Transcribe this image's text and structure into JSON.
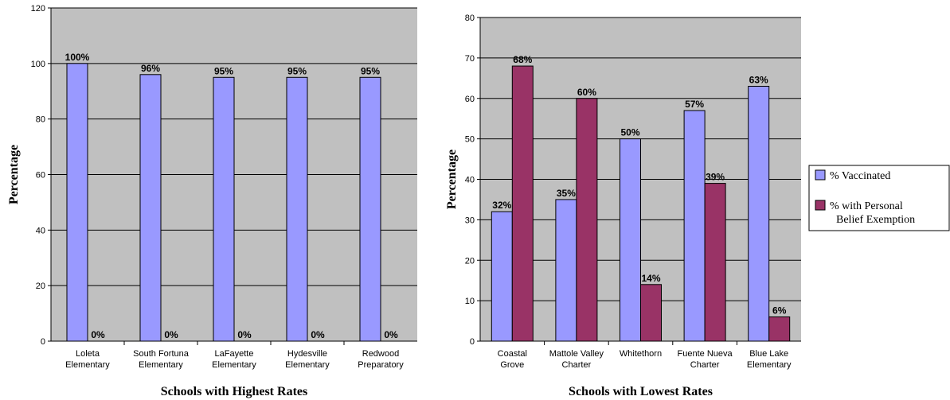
{
  "colors": {
    "plot_bg": "#c0c0c0",
    "vaccinated": "#9999ff",
    "pbe": "#993366",
    "gridline": "#000000"
  },
  "legend": {
    "vaccinated": "% Vaccinated",
    "pbe_line1": "% with Personal",
    "pbe_line2": "Belief Exemption",
    "placement": "right"
  },
  "chart_data": [
    {
      "type": "bar",
      "title": "",
      "xlabel": "Schools with Highest Rates",
      "ylabel": "Percentage",
      "ylim": [
        0,
        120
      ],
      "yticks": [
        0,
        20,
        40,
        60,
        80,
        100,
        120
      ],
      "grid": true,
      "categories": [
        [
          "Loleta",
          "Elementary"
        ],
        [
          "South Fortuna",
          "Elementary"
        ],
        [
          "LaFayette",
          "Elementary"
        ],
        [
          "Hydesville",
          "Elementary"
        ],
        [
          "Redwood",
          "Preparatory"
        ]
      ],
      "series": [
        {
          "name": "% Vaccinated",
          "color": "#9999ff",
          "values": [
            100,
            96,
            95,
            95,
            95
          ],
          "labels": [
            "100%",
            "96%",
            "95%",
            "95%",
            "95%"
          ]
        },
        {
          "name": "% with Personal Belief Exemption",
          "color": "#993366",
          "values": [
            0,
            0,
            0,
            0,
            0
          ],
          "labels": [
            "0%",
            "0%",
            "0%",
            "0%",
            "0%"
          ]
        }
      ]
    },
    {
      "type": "bar",
      "title": "",
      "xlabel": "Schools with Lowest Rates",
      "ylabel": "Percentage",
      "ylim": [
        0,
        80
      ],
      "yticks": [
        0,
        10,
        20,
        30,
        40,
        50,
        60,
        70,
        80
      ],
      "grid": true,
      "categories": [
        [
          "Coastal",
          "Grove"
        ],
        [
          "Mattole Valley",
          "Charter"
        ],
        [
          "Whitethorn"
        ],
        [
          "Fuente Nueva",
          "Charter"
        ],
        [
          "Blue Lake",
          "Elementary"
        ]
      ],
      "series": [
        {
          "name": "% Vaccinated",
          "color": "#9999ff",
          "values": [
            32,
            35,
            50,
            57,
            63
          ],
          "labels": [
            "32%",
            "35%",
            "50%",
            "57%",
            "63%"
          ]
        },
        {
          "name": "% with Personal Belief Exemption",
          "color": "#993366",
          "values": [
            68,
            60,
            14,
            39,
            6
          ],
          "labels": [
            "68%",
            "60%",
            "14%",
            "39%",
            "6%"
          ]
        }
      ]
    }
  ]
}
